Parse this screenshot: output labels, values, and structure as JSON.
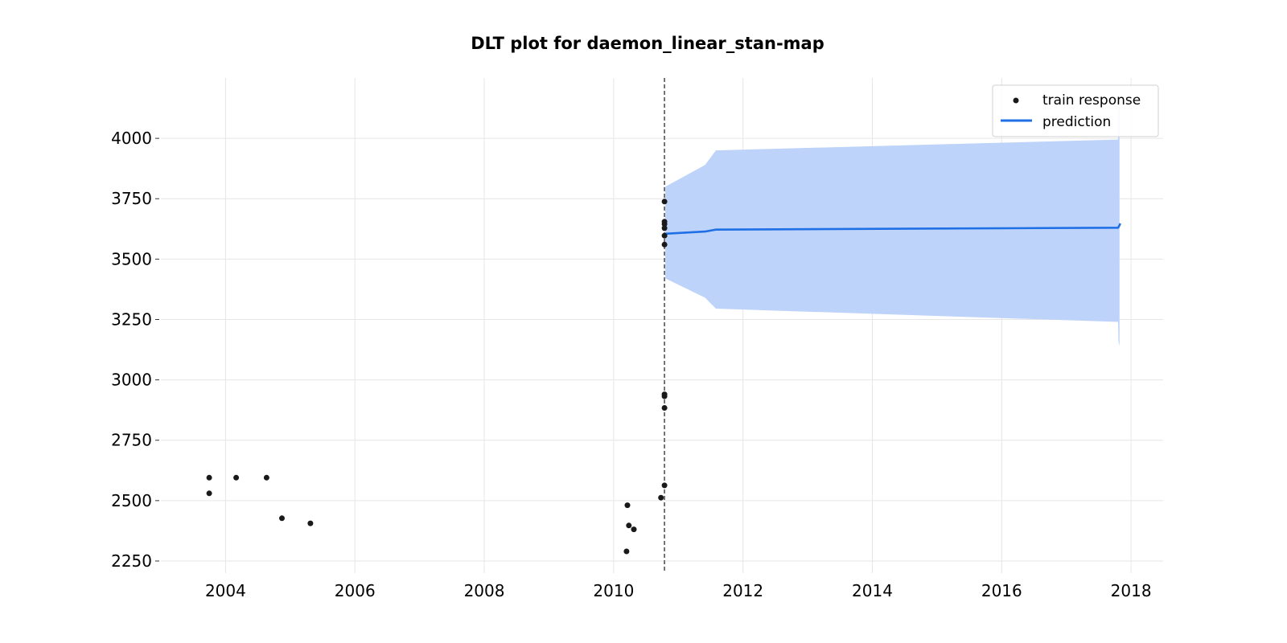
{
  "chart_data": {
    "type": "scatter",
    "title": "DLT plot for daemon_linear_stan-map",
    "xlabel": "",
    "ylabel": "",
    "x_type": "date",
    "xlim": [
      "2003-01-01",
      "2018-07-01"
    ],
    "ylim": [
      2200,
      4250
    ],
    "x_ticks": [
      "2004",
      "2006",
      "2008",
      "2010",
      "2012",
      "2014",
      "2016",
      "2018"
    ],
    "y_ticks": [
      2250,
      2500,
      2750,
      3000,
      3250,
      3500,
      3750,
      4000
    ],
    "grid": true,
    "legend_position": "top-right",
    "vline": {
      "x": "2010-10-15",
      "style": "dashed",
      "color": "#555555"
    },
    "series": [
      {
        "name": "train response",
        "kind": "scatter",
        "color": "#1a1a1a",
        "points": [
          {
            "x": "2003-10-01",
            "y": 2595
          },
          {
            "x": "2003-10-01",
            "y": 2530
          },
          {
            "x": "2004-03-01",
            "y": 2595
          },
          {
            "x": "2004-08-20",
            "y": 2595
          },
          {
            "x": "2004-11-15",
            "y": 2427
          },
          {
            "x": "2005-04-25",
            "y": 2406
          },
          {
            "x": "2010-03-15",
            "y": 2290
          },
          {
            "x": "2010-03-20",
            "y": 2481
          },
          {
            "x": "2010-03-28",
            "y": 2397
          },
          {
            "x": "2010-04-25",
            "y": 2381
          },
          {
            "x": "2010-09-25",
            "y": 2512
          },
          {
            "x": "2010-10-15",
            "y": 2563
          },
          {
            "x": "2010-10-15",
            "y": 2884
          },
          {
            "x": "2010-10-15",
            "y": 2932
          },
          {
            "x": "2010-10-15",
            "y": 2940
          },
          {
            "x": "2010-10-15",
            "y": 3560
          },
          {
            "x": "2010-10-15",
            "y": 3597
          },
          {
            "x": "2010-10-15",
            "y": 3628
          },
          {
            "x": "2010-10-15",
            "y": 3645
          },
          {
            "x": "2010-10-15",
            "y": 3655
          },
          {
            "x": "2010-10-15",
            "y": 3738
          }
        ]
      },
      {
        "name": "prediction",
        "kind": "line",
        "color": "#1f6fe5",
        "points": [
          {
            "x": "2010-10-20",
            "y": 3605
          },
          {
            "x": "2011-06-01",
            "y": 3614
          },
          {
            "x": "2011-08-01",
            "y": 3622
          },
          {
            "x": "2017-10-20",
            "y": 3630
          },
          {
            "x": "2017-10-28",
            "y": 3640
          },
          {
            "x": "2017-11-01",
            "y": 3648
          }
        ]
      }
    ],
    "band": {
      "color": "#bed3f9",
      "points": [
        {
          "x": "2010-10-20",
          "upper": 3800,
          "lower": 3420
        },
        {
          "x": "2011-06-01",
          "upper": 3890,
          "lower": 3340
        },
        {
          "x": "2011-08-01",
          "upper": 3950,
          "lower": 3295
        },
        {
          "x": "2017-10-20",
          "upper": 3995,
          "lower": 3240
        },
        {
          "x": "2017-10-22",
          "upper": 4120,
          "lower": 3160
        },
        {
          "x": "2017-10-28",
          "upper": 4150,
          "lower": 3140
        }
      ]
    }
  }
}
